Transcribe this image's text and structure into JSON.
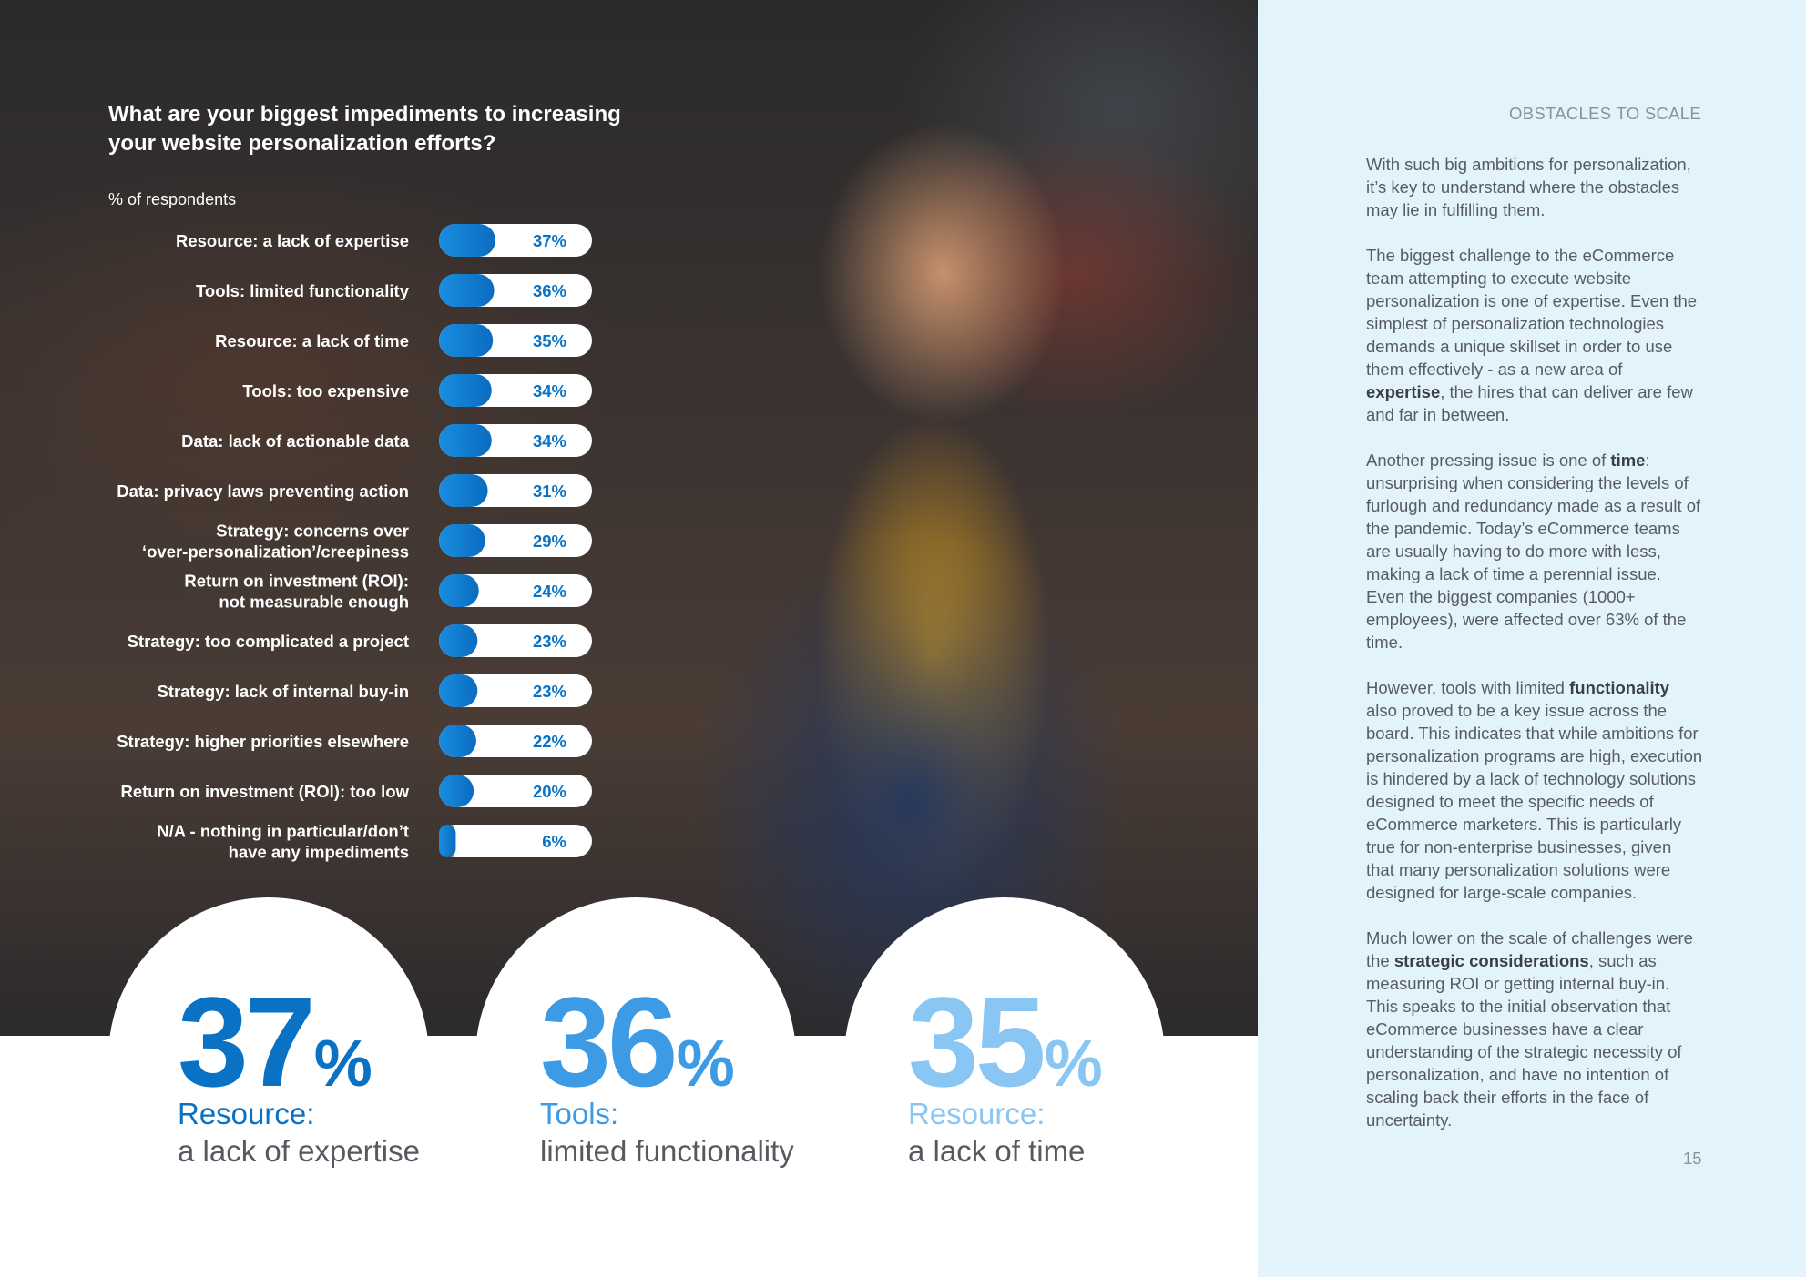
{
  "section_label": "OBSTACLES TO SCALE",
  "page_number": "15",
  "colors": {
    "dark_blue": "#0a72c4",
    "mid_blue": "#3d9be6",
    "light_blue": "#89c6f3",
    "panel": "#e3f3fb"
  },
  "chart_data": {
    "type": "bar",
    "orientation": "horizontal",
    "title": "What are your biggest impediments to increasing your website personalization efforts?",
    "subtitle": "% of respondents",
    "categories": [
      [
        "Resource: a lack of expertise"
      ],
      [
        "Tools: limited functionality"
      ],
      [
        "Resource: a lack of time"
      ],
      [
        "Tools: too expensive"
      ],
      [
        "Data: lack of actionable data"
      ],
      [
        "Data: privacy laws preventing action"
      ],
      [
        "Strategy: concerns over",
        "‘over-personalization’/creepiness"
      ],
      [
        "Return on investment (ROI):",
        "not measurable enough"
      ],
      [
        "Strategy: too complicated a project"
      ],
      [
        "Strategy: lack of internal buy-in"
      ],
      [
        "Strategy: higher priorities elsewhere"
      ],
      [
        "Return on investment (ROI): too low"
      ],
      [
        "N/A - nothing in particular/don’t",
        "have any impediments"
      ]
    ],
    "values": [
      37,
      36,
      35,
      34,
      34,
      31,
      29,
      24,
      23,
      23,
      22,
      20,
      6
    ],
    "value_labels": [
      "37%",
      "36%",
      "35%",
      "34%",
      "34%",
      "31%",
      "29%",
      "24%",
      "23%",
      "23%",
      "22%",
      "20%",
      "6%"
    ],
    "xlim": [
      0,
      37
    ]
  },
  "highlights": [
    {
      "number": "37",
      "pct": "%",
      "category": "Resource:",
      "description": "a lack of expertise",
      "color": "#0a72c4"
    },
    {
      "number": "36",
      "pct": "%",
      "category": "Tools:",
      "description": "limited functionality",
      "color": "#3d9be6"
    },
    {
      "number": "35",
      "pct": "%",
      "category": "Resource:",
      "description": "a lack of time",
      "color": "#89c6f3"
    }
  ],
  "body": {
    "p1": "With such big ambitions for personalization, it’s key to understand where the obstacles may lie in fulfilling them.",
    "p2_a": "The biggest challenge to the eCommerce team attempting to execute website personalization is one of expertise. Even the simplest of personalization technologies demands a unique skillset in order to use them effectively - as a new area of ",
    "p2_b": "expertise",
    "p2_c": ", the hires that can deliver are few and far in between.",
    "p3_a": "Another pressing issue is one of ",
    "p3_b": "time",
    "p3_c": ": unsurprising when considering the levels of furlough and redundancy made as a result of the pandemic. Today’s eCommerce teams are usually having to do more with less, making a lack of time a perennial issue. Even the biggest companies (1000+ employees), were affected over 63% of the time.",
    "p4_a": "However, tools with limited ",
    "p4_b": "functionality",
    "p4_c": " also proved to be a key issue across the board. This indicates that while ambitions for personalization programs are high, execution is hindered by a lack of technology solutions designed to meet the specific needs of eCommerce marketers. This is particularly true for non-enterprise businesses, given that many personalization solutions were designed for large-scale companies.",
    "p5_a": "Much lower on the scale of challenges were the ",
    "p5_b": "strategic considerations",
    "p5_c": ", such as measuring ROI or getting internal buy-in. This speaks to the initial observation that eCommerce businesses have a clear understanding of the strategic necessity of personalization, and have no intention of scaling back their efforts in the face of uncertainty."
  }
}
